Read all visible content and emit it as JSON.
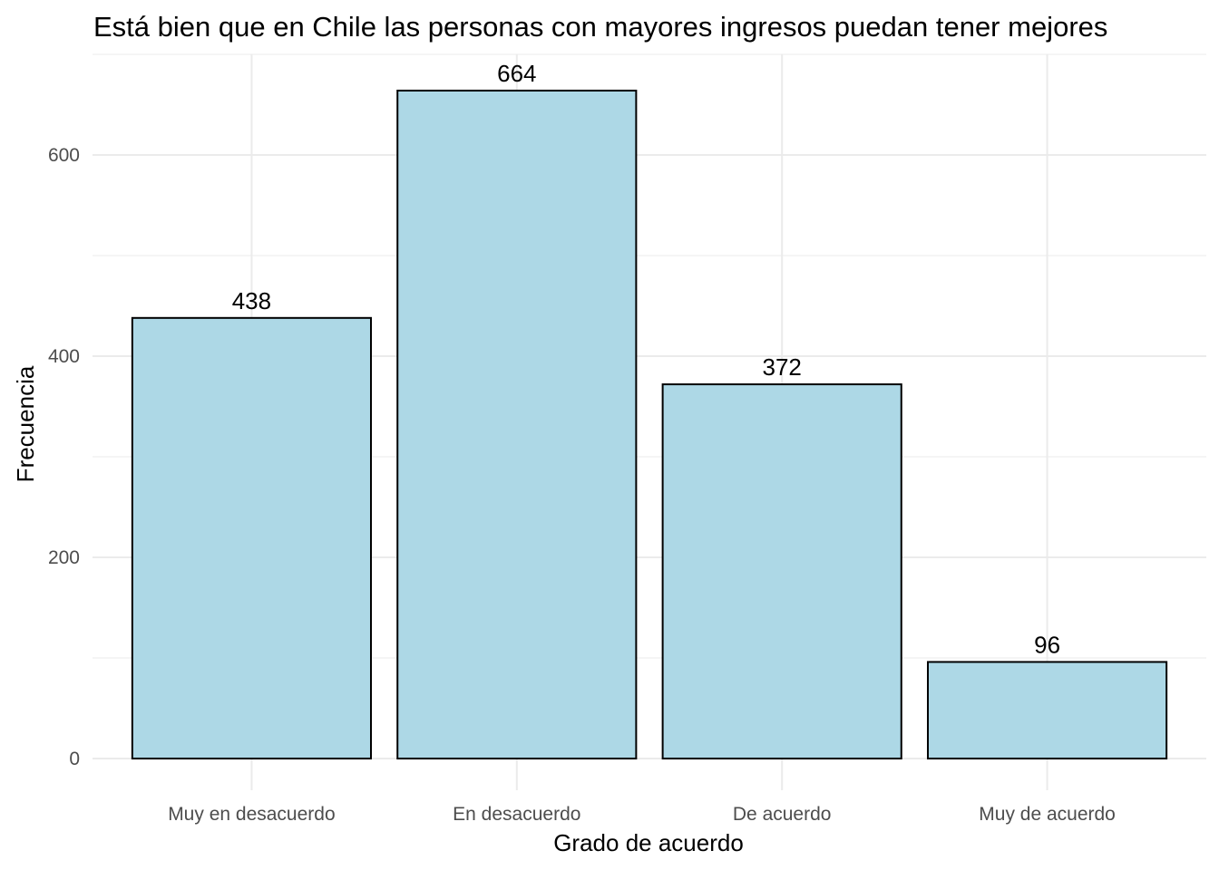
{
  "chart_data": {
    "type": "bar",
    "title": "Está bien que en Chile las personas con mayores ingresos puedan tener mejores",
    "xlabel": "Grado de acuerdo",
    "ylabel": "Frecuencia",
    "categories": [
      "Muy en desacuerdo",
      "En desacuerdo",
      "De acuerdo",
      "Muy de acuerdo"
    ],
    "values": [
      438,
      664,
      372,
      96
    ],
    "data_labels": [
      "438",
      "664",
      "372",
      "96"
    ],
    "yticks": [
      0,
      200,
      400,
      600
    ],
    "ytick_labels": [
      "0",
      "200",
      "400",
      "600"
    ],
    "ylim": [
      -31,
      701
    ],
    "grid": true,
    "colors": {
      "bar_fill": "#add8e6",
      "bar_stroke": "#000000",
      "grid": "#ebebeb"
    }
  }
}
